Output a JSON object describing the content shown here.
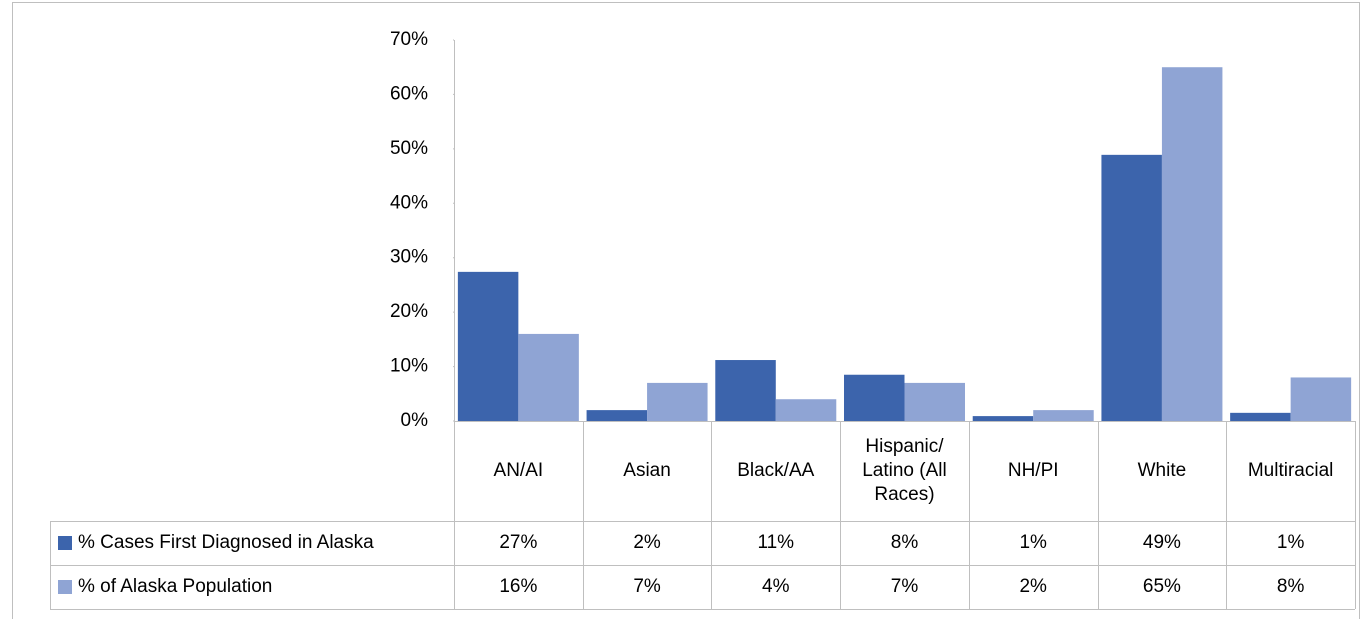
{
  "chart_data": {
    "type": "bar",
    "categories": [
      "AN/AI",
      "Asian",
      "Black/AA",
      "Hispanic/ Latino (All Races)",
      "NH/PI",
      "White",
      "Multiracial"
    ],
    "series": [
      {
        "name": "% Cases First Diagnosed in Alaska",
        "color": "#3c64ac",
        "values": [
          27.4,
          2,
          11.2,
          8.5,
          0.9,
          48.9,
          1.5
        ],
        "value_labels": [
          "27%",
          "2%",
          "11%",
          "8%",
          "1%",
          "49%",
          "1%"
        ]
      },
      {
        "name": "% of Alaska Population",
        "color": "#8fa4d4",
        "values": [
          16,
          7,
          4,
          7,
          2,
          65,
          8
        ],
        "value_labels": [
          "16%",
          "7%",
          "4%",
          "7%",
          "2%",
          "65%",
          "8%"
        ]
      }
    ],
    "ylim": [
      0,
      70
    ],
    "yticks": [
      {
        "value": 0,
        "label": "0%"
      },
      {
        "value": 10,
        "label": "10%"
      },
      {
        "value": 20,
        "label": "20%"
      },
      {
        "value": 30,
        "label": "30%"
      },
      {
        "value": 40,
        "label": "40%"
      },
      {
        "value": 50,
        "label": "50%"
      },
      {
        "value": 60,
        "label": "60%"
      },
      {
        "value": 70,
        "label": "70%"
      }
    ],
    "grid": false,
    "data_table": true
  }
}
